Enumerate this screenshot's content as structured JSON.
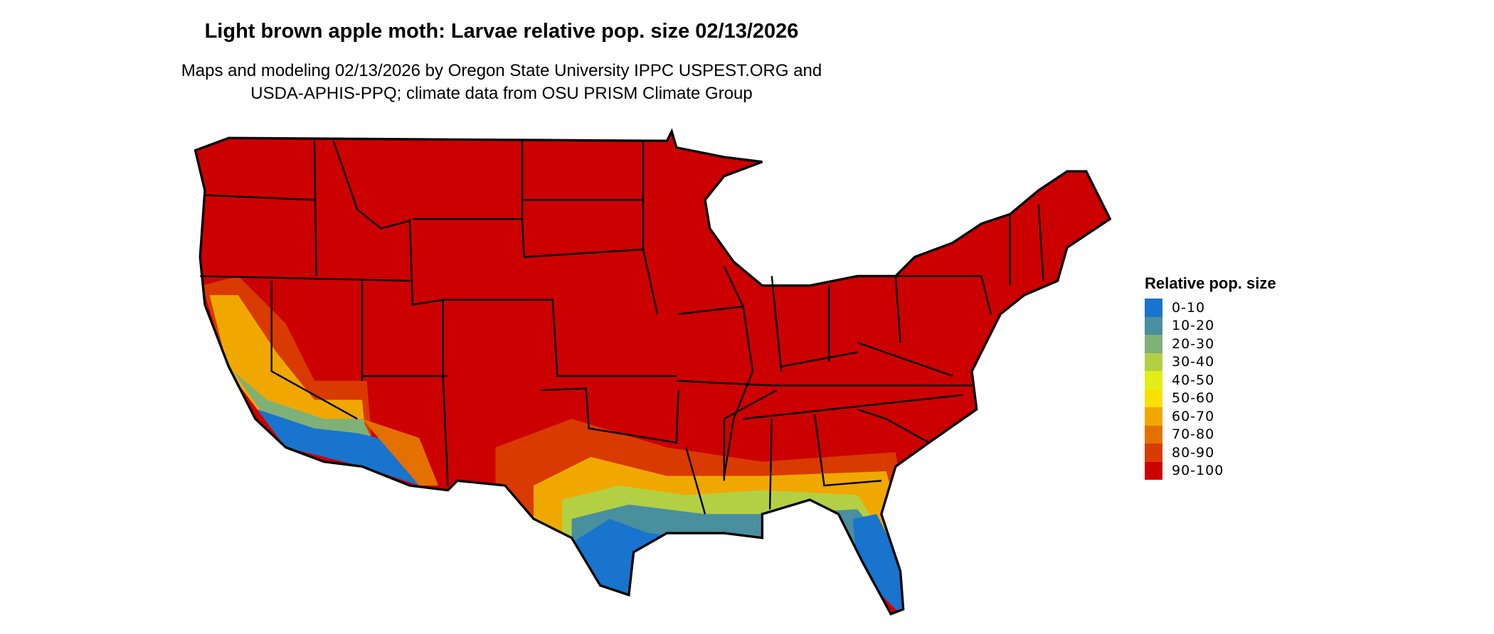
{
  "title": "Light brown apple moth: Larvae relative pop. size 02/13/2026",
  "subtitle_lines": [
    "Maps and modeling 02/13/2026 by Oregon State University IPPC USPEST.ORG and",
    "USDA-APHIS-PPQ; climate data from OSU PRISM Climate Group"
  ],
  "legend": {
    "title": "Relative pop. size",
    "placement": "right",
    "items": [
      {
        "label": "0-10",
        "color": "#1874cd"
      },
      {
        "label": "10-20",
        "color": "#4a8f9e"
      },
      {
        "label": "20-30",
        "color": "#7fb077"
      },
      {
        "label": "30-40",
        "color": "#b3d045"
      },
      {
        "label": "40-50",
        "color": "#e3ef14"
      },
      {
        "label": "50-60",
        "color": "#f9e000"
      },
      {
        "label": "60-70",
        "color": "#f0a800"
      },
      {
        "label": "70-80",
        "color": "#e47000"
      },
      {
        "label": "80-90",
        "color": "#d93a00"
      },
      {
        "label": "90-100",
        "color": "#cd0000"
      }
    ]
  },
  "chart_data": {
    "type": "heatmap",
    "region": "Contiguous United States",
    "dominant_class": "90-100",
    "low_value_areas": [
      "southern Texas",
      "Florida peninsula",
      "southern California",
      "southwestern Arizona",
      "Gulf coast"
    ]
  }
}
